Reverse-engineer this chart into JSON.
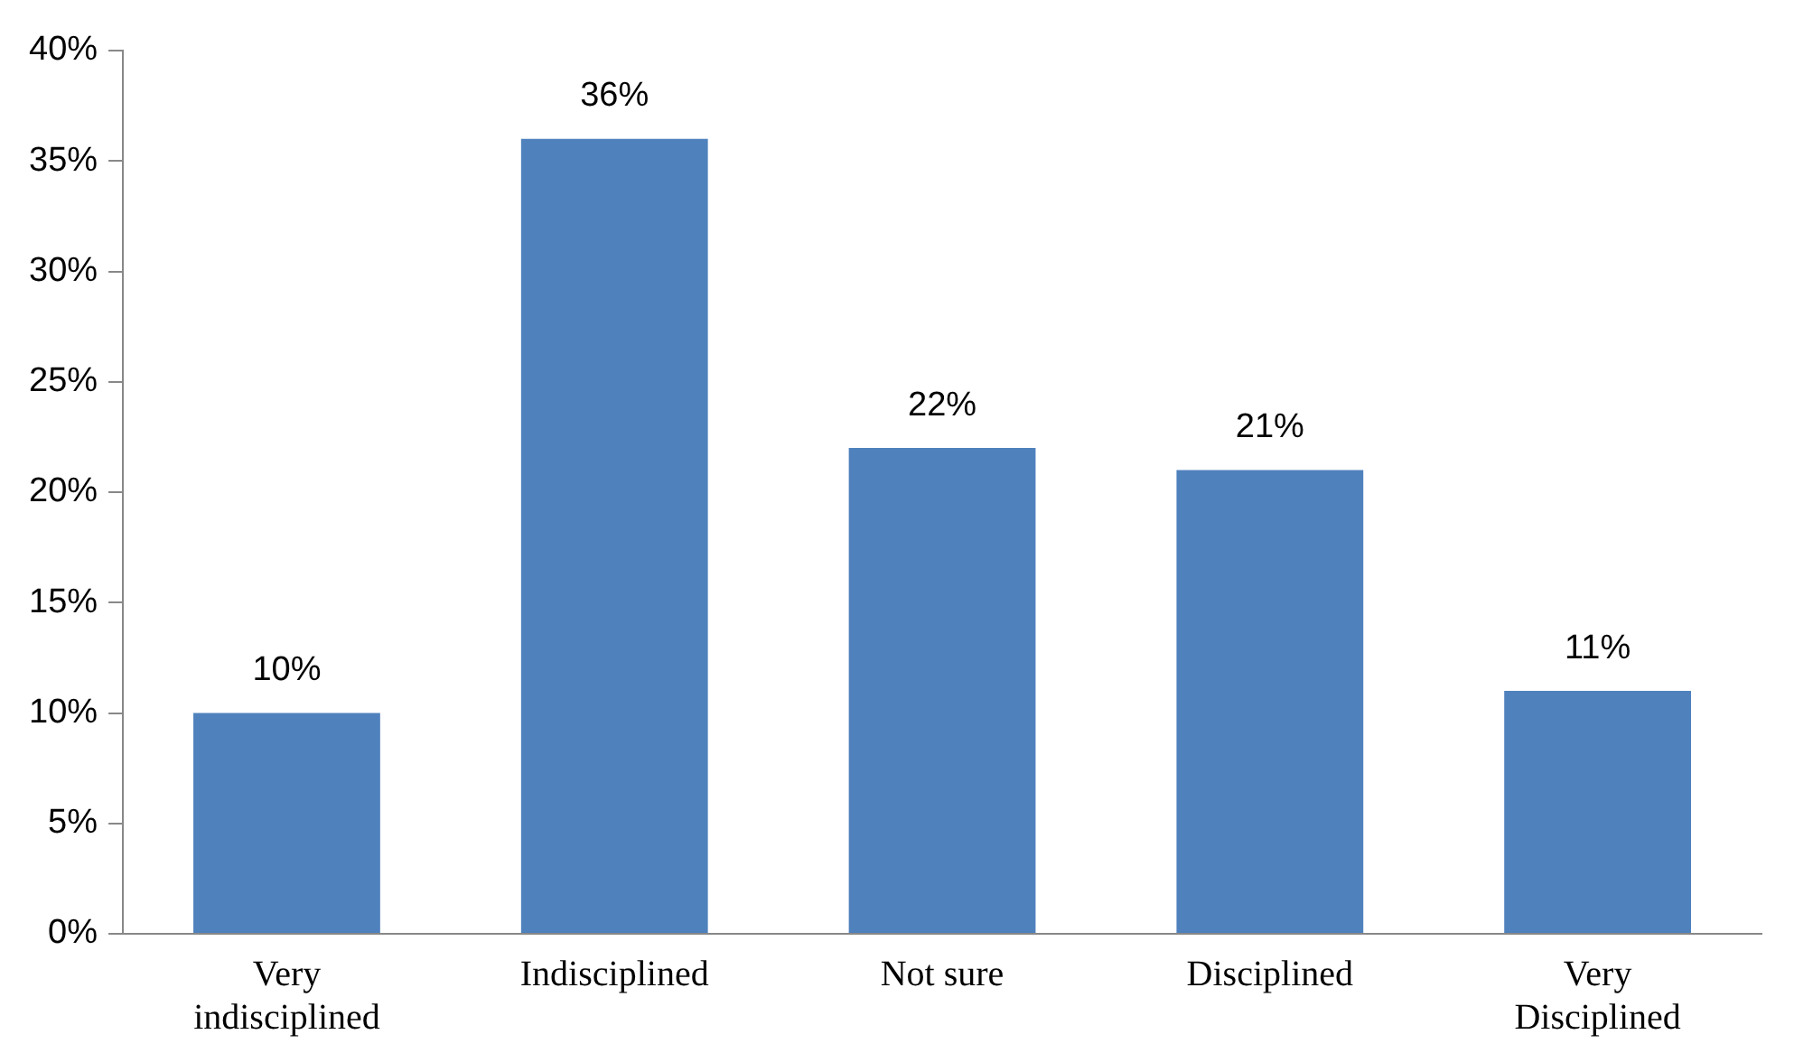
{
  "chart_data": {
    "type": "bar",
    "categories": [
      "Very indisciplined",
      "Indisciplined",
      "Not sure",
      "Disciplined",
      "Very Disciplined"
    ],
    "values": [
      10,
      36,
      22,
      21,
      11
    ],
    "color": "#4f81bd",
    "value_labels": [
      "10%",
      "36%",
      "22%",
      "21%",
      "11%"
    ],
    "ylim": [
      0,
      40
    ],
    "yticks": [
      {
        "value": 0,
        "label": "0%"
      },
      {
        "value": 5,
        "label": "5%"
      },
      {
        "value": 10,
        "label": "10%"
      },
      {
        "value": 15,
        "label": "15%"
      },
      {
        "value": 20,
        "label": "20%"
      },
      {
        "value": 25,
        "label": "25%"
      },
      {
        "value": 30,
        "label": "30%"
      },
      {
        "value": 35,
        "label": "35%"
      },
      {
        "value": 40,
        "label": "40%"
      }
    ],
    "grid": false,
    "legend": false
  }
}
